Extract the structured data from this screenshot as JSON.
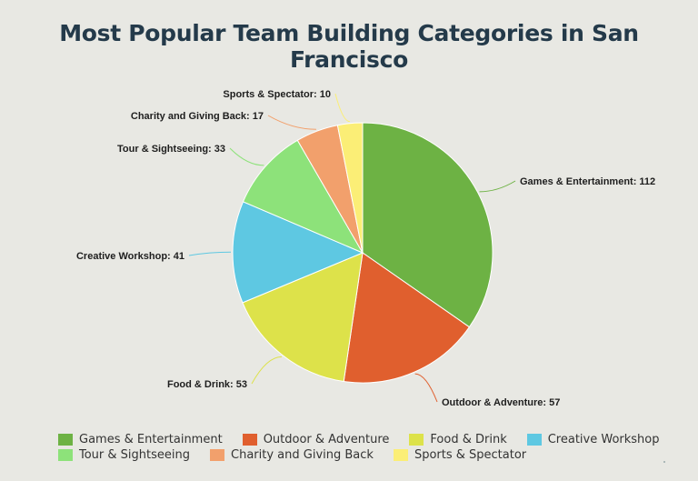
{
  "chart_data": {
    "type": "pie",
    "title": "Most Popular Team Building Categories in San Francisco",
    "slices": [
      {
        "name": "Games & Entertainment",
        "value": 112,
        "label": "Games & Entertainment: 112",
        "color": "#6db244"
      },
      {
        "name": "Outdoor & Adventure",
        "value": 57,
        "label": "Outdoor & Adventure: 57",
        "color": "#e05f2e"
      },
      {
        "name": "Food & Drink",
        "value": 53,
        "label": "Food & Drink: 53",
        "color": "#dde24a"
      },
      {
        "name": "Creative Workshop",
        "value": 41,
        "label": "Creative Workshop: 41",
        "color": "#5ec8e2"
      },
      {
        "name": "Tour & Sightseeing",
        "value": 33,
        "label": "Tour & Sightseeing: 33",
        "color": "#8de27a"
      },
      {
        "name": "Charity and Giving Back",
        "value": 17,
        "label": "Charity and Giving Back: 17",
        "color": "#f2a06c"
      },
      {
        "name": "Sports & Spectator",
        "value": 10,
        "label": "Sports & Spectator: 10",
        "color": "#fbee76"
      }
    ],
    "legend_placement": "bottom"
  }
}
